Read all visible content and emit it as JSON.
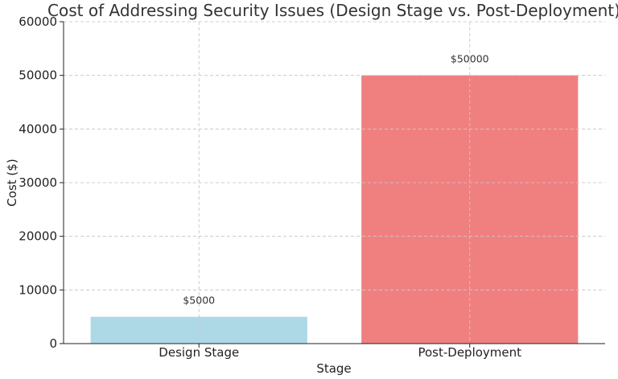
{
  "chart_data": {
    "type": "bar",
    "title": "Cost of Addressing Security Issues (Design Stage vs. Post-Deployment)",
    "xlabel": "Stage",
    "ylabel": "Cost ($)",
    "categories": [
      "Design Stage",
      "Post-Deployment"
    ],
    "values": [
      5000,
      50000
    ],
    "data_labels": [
      "$5000",
      "$50000"
    ],
    "colors": [
      "#add8e6",
      "#f08080"
    ],
    "ylim": [
      0,
      60000
    ],
    "yticks": [
      0,
      10000,
      20000,
      30000,
      40000,
      50000,
      60000
    ],
    "grid": true
  }
}
